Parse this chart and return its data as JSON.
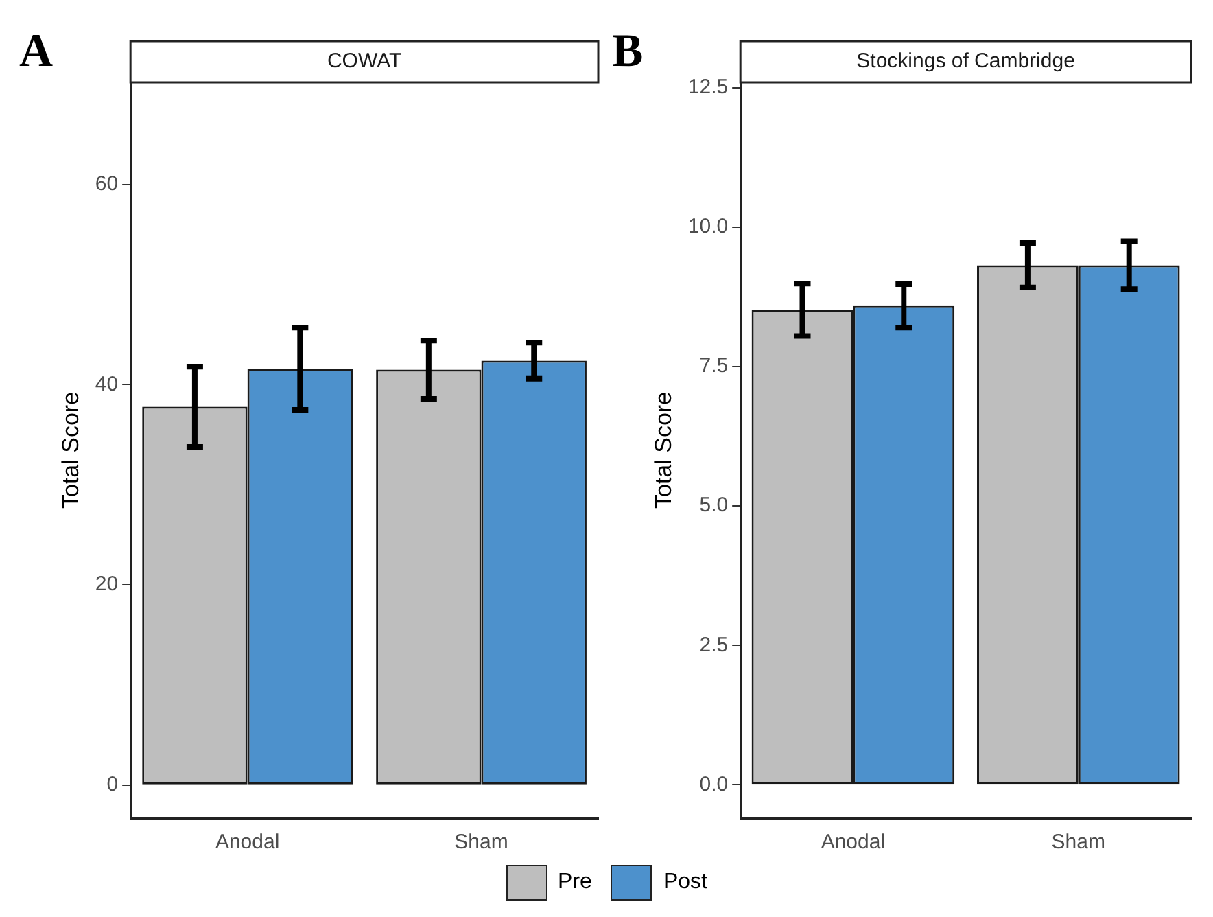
{
  "chart_data": [
    {
      "type": "bar",
      "title": "COWAT",
      "ylabel": "Total Score",
      "annotations": [
        "A"
      ],
      "categories": [
        "Anodal",
        "Sham"
      ],
      "series": [
        {
          "name": "Pre",
          "color": "#bebebe",
          "values": [
            37.8,
            41.5
          ],
          "errors": [
            4.0,
            2.9
          ]
        },
        {
          "name": "Post",
          "color": "#4d91cc",
          "values": [
            41.6,
            42.4
          ],
          "errors": [
            4.1,
            1.8
          ]
        }
      ],
      "ylim": [
        -3.3,
        70.2
      ],
      "yticks": [
        0,
        20,
        40,
        60
      ],
      "grid": false,
      "legend": "bottom"
    },
    {
      "type": "bar",
      "title": "Stockings of Cambridge",
      "ylabel": "Total Score",
      "annotations": [
        "B"
      ],
      "categories": [
        "Anodal",
        "Sham"
      ],
      "series": [
        {
          "color": "#bebebe",
          "values": [
            8.52,
            9.32
          ],
          "errors": [
            0.47,
            0.4
          ]
        },
        {
          "color": "#4d91cc",
          "values": [
            8.59,
            9.32
          ],
          "errors": [
            0.39,
            0.43
          ]
        }
      ],
      "ylim": [
        -0.6,
        12.6
      ],
      "yticks": [
        {
          "value": 0,
          "label": "0.0"
        },
        2.5,
        {
          "value": 5,
          "label": "5.0"
        },
        7.5,
        {
          "value": 10,
          "label": "10.0"
        },
        12.5
      ],
      "grid": false
    }
  ]
}
